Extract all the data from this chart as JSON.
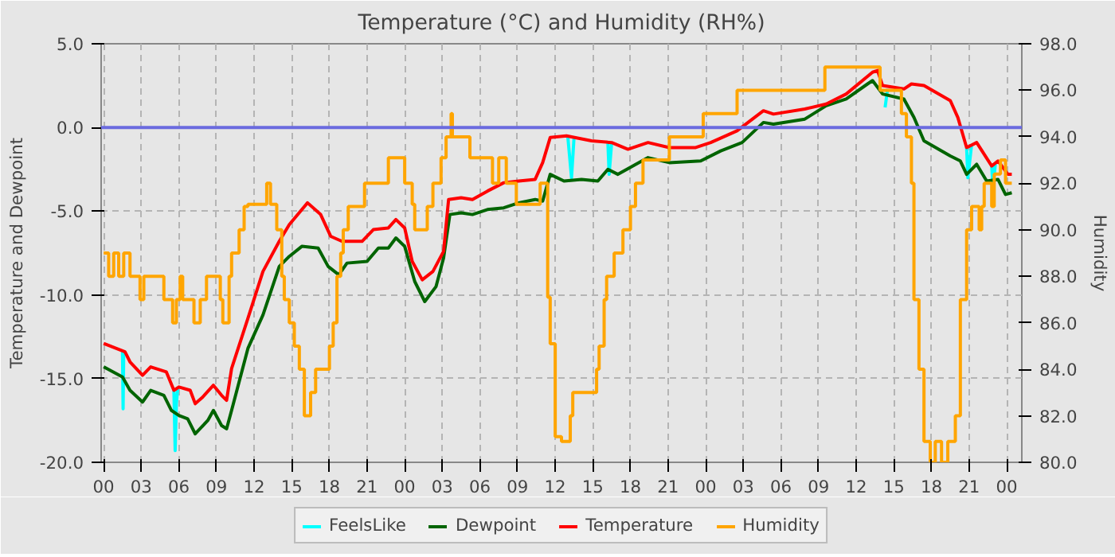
{
  "chart_data": {
    "type": "line",
    "title": "Temperature (°C) and Humidity (RH%)",
    "ylabel": "Temperature and Dewpoint",
    "y2label": "Humidity",
    "xlim": [
      -0.2,
      73.2
    ],
    "xticks": [
      {
        "value": 0,
        "label": "00"
      },
      {
        "value": 3,
        "label": "03"
      },
      {
        "value": 6,
        "label": "06"
      },
      {
        "value": 9,
        "label": "09"
      },
      {
        "value": 12,
        "label": "12"
      },
      {
        "value": 15,
        "label": "15"
      },
      {
        "value": 18,
        "label": "18"
      },
      {
        "value": 21,
        "label": "21"
      },
      {
        "value": 24,
        "label": "00"
      },
      {
        "value": 27,
        "label": "03"
      },
      {
        "value": 30,
        "label": "06"
      },
      {
        "value": 33,
        "label": "09"
      },
      {
        "value": 36,
        "label": "12"
      },
      {
        "value": 39,
        "label": "15"
      },
      {
        "value": 42,
        "label": "18"
      },
      {
        "value": 45,
        "label": "21"
      },
      {
        "value": 48,
        "label": "00"
      },
      {
        "value": 51,
        "label": "03"
      },
      {
        "value": 54,
        "label": "06"
      },
      {
        "value": 57,
        "label": "09"
      },
      {
        "value": 60,
        "label": "12"
      },
      {
        "value": 63,
        "label": "15"
      },
      {
        "value": 66,
        "label": "18"
      },
      {
        "value": 69,
        "label": "21"
      },
      {
        "value": 72,
        "label": "00"
      }
    ],
    "ylim": [
      -20,
      5
    ],
    "yticks": [
      {
        "value": -20,
        "label": "-20.0"
      },
      {
        "value": -15,
        "label": "-15.0"
      },
      {
        "value": -10,
        "label": "-10.0"
      },
      {
        "value": -5,
        "label": "-5.0"
      },
      {
        "value": 0,
        "label": "0.0"
      },
      {
        "value": 5,
        "label": "5.0"
      }
    ],
    "y2lim": [
      80,
      98
    ],
    "y2ticks": [
      {
        "value": 80,
        "label": "80.0"
      },
      {
        "value": 82,
        "label": "82.0"
      },
      {
        "value": 84,
        "label": "84.0"
      },
      {
        "value": 86,
        "label": "86.0"
      },
      {
        "value": 88,
        "label": "88.0"
      },
      {
        "value": 90,
        "label": "90.0"
      },
      {
        "value": 92,
        "label": "92.0"
      },
      {
        "value": 94,
        "label": "94.0"
      },
      {
        "value": 96,
        "label": "96.0"
      },
      {
        "value": 98,
        "label": "98.0"
      }
    ],
    "grid": true,
    "legend": "bottom",
    "line_style": "solid",
    "ref_lines": [
      {
        "axis": "y",
        "value": 0,
        "color": "#6b6bdf"
      }
    ],
    "series": [
      {
        "name": "FeelsLike",
        "color": "#00ffff",
        "x": [
          1.5,
          1.55,
          1.6,
          3.0,
          5.6,
          5.7,
          5.8,
          5.9,
          20.0,
          37.0,
          37.3,
          37.5,
          39.0,
          40.2,
          40.3,
          40.5,
          50.0,
          61.9,
          62.3,
          62.5,
          66.0,
          68.8,
          68.9,
          69.2,
          70.0,
          70.8,
          70.9,
          71.1
        ],
        "values": [
          -13.3,
          -16.8,
          -13.4,
          null,
          -15.7,
          -19.3,
          -16.5,
          -15.6,
          null,
          -0.5,
          -3.0,
          -0.6,
          null,
          -0.9,
          -2.8,
          -0.9,
          null,
          null,
          1.2,
          2.3,
          null,
          -1.2,
          -3.0,
          -1.0,
          null,
          -2.3,
          -3.6,
          -2.1
        ]
      },
      {
        "name": "Dewpoint",
        "color": "#006400",
        "x": [
          0,
          1.5,
          2.1,
          3.1,
          3.75,
          4.8,
          5.4,
          6.0,
          6.7,
          7.3,
          8.3,
          8.75,
          9.4,
          9.8,
          10.2,
          11.5,
          12.7,
          14.0,
          14.8,
          15.8,
          17.1,
          17.9,
          18.75,
          19.4,
          21.0,
          21.9,
          22.7,
          23.3,
          24.0,
          24.8,
          25.6,
          26.5,
          27.1,
          27.6,
          28.5,
          29.4,
          30.6,
          31.9,
          33.1,
          34.4,
          35.0,
          35.6,
          36.7,
          38.1,
          39.4,
          40.2,
          41.0,
          43.4,
          45.1,
          47.6,
          49.2,
          50.9,
          52.6,
          53.4,
          55.9,
          57.6,
          59.2,
          60.9,
          61.3,
          62.1,
          63.8,
          64.6,
          65.4,
          67.5,
          68.3,
          68.8,
          69.6,
          70.4,
          71.3,
          71.9,
          72.4
        ],
        "values": [
          -14.3,
          -14.9,
          -15.7,
          -16.4,
          -15.7,
          -16.0,
          -16.9,
          -17.2,
          -17.4,
          -18.3,
          -17.5,
          -16.9,
          -17.8,
          -18.0,
          -16.9,
          -13.2,
          -11.2,
          -8.3,
          -7.7,
          -7.1,
          -7.2,
          -8.3,
          -8.8,
          -8.1,
          -8.0,
          -7.2,
          -7.2,
          -6.6,
          -7.1,
          -9.2,
          -10.4,
          -9.5,
          -7.8,
          -5.2,
          -5.1,
          -5.2,
          -4.9,
          -4.8,
          -4.5,
          -4.3,
          -4.4,
          -2.8,
          -3.2,
          -3.1,
          -3.2,
          -2.5,
          -2.8,
          -1.8,
          -2.1,
          -2.0,
          -1.4,
          -0.9,
          0.3,
          0.2,
          0.5,
          1.3,
          1.7,
          2.6,
          2.8,
          2.0,
          1.7,
          0.6,
          -0.8,
          -1.7,
          -2.0,
          -2.8,
          -2.2,
          -3.2,
          -3.1,
          -4.0,
          -3.9
        ]
      },
      {
        "name": "Temperature",
        "color": "#ff0000",
        "x": [
          0,
          1.7,
          2.1,
          3.1,
          3.75,
          5.0,
          5.6,
          6.0,
          6.9,
          7.3,
          7.9,
          8.75,
          9.4,
          9.8,
          10.2,
          11.5,
          12.7,
          14.0,
          14.8,
          16.25,
          17.3,
          18.1,
          19.0,
          20.6,
          21.5,
          22.7,
          23.3,
          24.0,
          24.6,
          25.4,
          26.25,
          27.1,
          27.5,
          28.5,
          29.4,
          30.6,
          31.9,
          33.1,
          34.4,
          35.0,
          35.6,
          36.9,
          38.9,
          40.5,
          41.8,
          43.4,
          45.1,
          47.2,
          48.4,
          50.5,
          52.6,
          53.4,
          55.9,
          57.6,
          59.2,
          61.3,
          61.7,
          62.1,
          63.8,
          64.4,
          65.4,
          67.5,
          68.1,
          68.8,
          69.6,
          70.8,
          71.3,
          72.1,
          72.4
        ],
        "values": [
          -12.9,
          -13.4,
          -14.0,
          -14.8,
          -14.3,
          -14.6,
          -15.7,
          -15.5,
          -15.7,
          -16.5,
          -16.1,
          -15.4,
          -16.0,
          -16.3,
          -14.4,
          -11.4,
          -8.6,
          -6.8,
          -5.8,
          -4.5,
          -5.2,
          -6.5,
          -6.8,
          -6.8,
          -6.1,
          -6.0,
          -5.5,
          -6.0,
          -8.0,
          -9.1,
          -8.6,
          -7.4,
          -4.3,
          -4.2,
          -4.3,
          -3.8,
          -3.3,
          -3.2,
          -3.1,
          -2.1,
          -0.6,
          -0.5,
          -0.8,
          -0.9,
          -1.3,
          -0.9,
          -1.2,
          -1.2,
          -0.9,
          -0.2,
          1.0,
          0.8,
          1.1,
          1.4,
          2.0,
          3.3,
          3.4,
          2.5,
          2.3,
          2.6,
          2.5,
          1.6,
          0.6,
          -1.2,
          -0.9,
          -2.3,
          -2.0,
          -2.8,
          -2.8
        ]
      },
      {
        "name": "Humidity",
        "color": "#ffa500",
        "type": "step",
        "axis": "y2",
        "x": [
          0,
          0.4,
          0.8,
          1.2,
          1.6,
          2.1,
          2.9,
          3.2,
          4.8,
          5.5,
          5.8,
          6.1,
          6.3,
          7.2,
          7.7,
          8.2,
          9.3,
          9.5,
          10.0,
          10.2,
          10.8,
          11.2,
          11.5,
          13.0,
          13.3,
          13.8,
          14.2,
          14.4,
          14.8,
          15.2,
          15.6,
          16.0,
          16.5,
          16.9,
          18.0,
          18.3,
          18.6,
          18.9,
          19.1,
          19.5,
          20.8,
          22.7,
          24.0,
          24.6,
          24.8,
          25.8,
          26.25,
          26.9,
          27.3,
          27.7,
          27.8,
          29.2,
          31.0,
          31.5,
          32.1,
          32.9,
          34.8,
          35.4,
          35.6,
          36.0,
          36.5,
          37.2,
          37.4,
          39.3,
          39.5,
          39.9,
          40.1,
          40.7,
          41.4,
          42.0,
          42.4,
          43.0,
          45.1,
          47.8,
          50.5,
          57.5,
          61.9,
          63.6,
          64.0,
          64.4,
          64.6,
          65.0,
          65.4,
          65.9,
          66.3,
          66.8,
          67.3,
          67.9,
          68.3,
          68.8,
          69.2,
          69.8,
          70.0,
          70.2,
          70.8,
          71.0,
          71.5,
          71.9,
          72.4
        ],
        "values": [
          89.0,
          88.0,
          89.0,
          88.0,
          89.0,
          88.0,
          87.0,
          88.0,
          87.0,
          86.0,
          87.0,
          88.0,
          87.0,
          86.0,
          87.0,
          88.0,
          87.0,
          86.0,
          88.0,
          89.0,
          90.0,
          91.0,
          91.1,
          92.0,
          91.1,
          90.0,
          88.0,
          87.0,
          86.0,
          85.0,
          84.0,
          82.0,
          83.0,
          84.0,
          85.0,
          86.0,
          88.0,
          89.0,
          90.0,
          91.0,
          92.0,
          93.1,
          92.0,
          91.1,
          90.0,
          91.0,
          92.0,
          93.1,
          94.0,
          95.0,
          94.0,
          93.1,
          92.0,
          93.1,
          92.0,
          91.1,
          92.0,
          87.1,
          85.1,
          81.1,
          80.9,
          82.0,
          83.0,
          84.0,
          85.0,
          87.0,
          88.0,
          89.0,
          90.0,
          91.0,
          92.0,
          93.0,
          94.0,
          95.0,
          96.0,
          97.0,
          96.0,
          95.0,
          94.0,
          92.0,
          87.0,
          84.0,
          80.9,
          80.0,
          80.9,
          80.0,
          80.9,
          82.0,
          87.0,
          90.0,
          91.0,
          90.0,
          91.0,
          92.0,
          91.0,
          92.4,
          93.0,
          92.0,
          92.0
        ]
      }
    ]
  }
}
